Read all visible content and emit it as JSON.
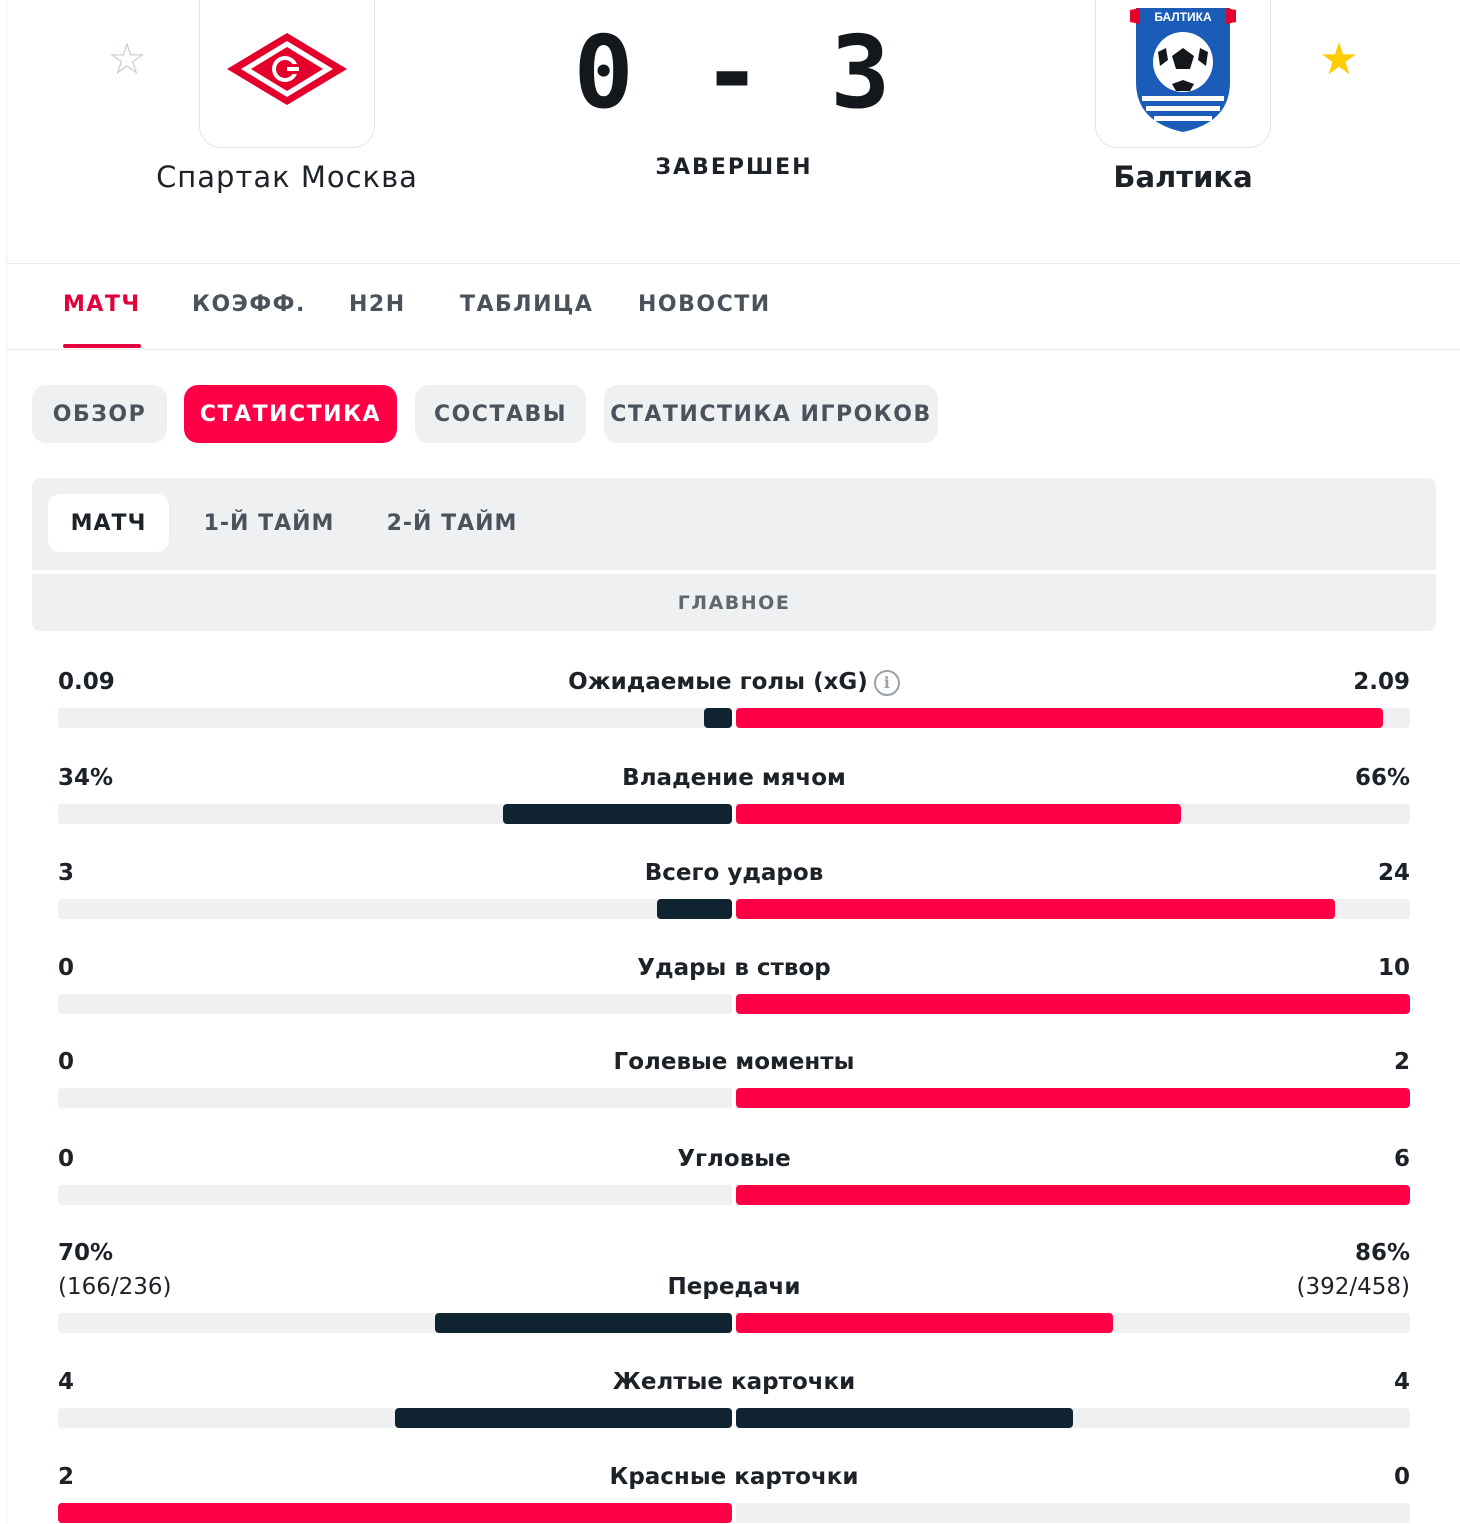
{
  "match": {
    "home": {
      "name": "Спартак Москва",
      "favorite": false
    },
    "away": {
      "name": "Балтика",
      "favorite": true,
      "logo_text": "БАЛТИКА"
    },
    "score": "0 - 3",
    "status": "ЗАВЕРШЕН"
  },
  "main_tabs": [
    {
      "label": "МАТЧ",
      "active": true
    },
    {
      "label": "КОЭФФ.",
      "active": false
    },
    {
      "label": "H2H",
      "active": false
    },
    {
      "label": "ТАБЛИЦА",
      "active": false
    },
    {
      "label": "НОВОСТИ",
      "active": false
    }
  ],
  "sub_tabs": [
    {
      "label": "ОБЗОР",
      "active": false
    },
    {
      "label": "СТАТИСТИКА",
      "active": true
    },
    {
      "label": "СОСТАВЫ",
      "active": false
    },
    {
      "label": "СТАТИСТИКА ИГРОКОВ",
      "active": false
    }
  ],
  "period_tabs": [
    {
      "label": "МАТЧ",
      "active": true
    },
    {
      "label": "1-Й ТАЙМ",
      "active": false
    },
    {
      "label": "2-Й ТАЙМ",
      "active": false
    }
  ],
  "section_title": "ГЛАВНОЕ",
  "stats": [
    {
      "label": "Ожидаемые голы (xG)",
      "info": true,
      "home": "0.09",
      "away": "2.09",
      "home_fraction": 0.04,
      "away_fraction": 0.96,
      "home_color": "#0f2430",
      "away_color": "#ff0046"
    },
    {
      "label": "Владение мячом",
      "home": "34%",
      "away": "66%",
      "home_fraction": 0.34,
      "away_fraction": 0.66,
      "home_color": "#0f2430",
      "away_color": "#ff0046"
    },
    {
      "label": "Всего ударов",
      "home": "3",
      "away": "24",
      "home_fraction": 0.111,
      "away_fraction": 0.889,
      "home_color": "#0f2430",
      "away_color": "#ff0046"
    },
    {
      "label": "Удары в створ",
      "home": "0",
      "away": "10",
      "home_fraction": 0,
      "away_fraction": 1,
      "home_color": "#0f2430",
      "away_color": "#ff0046"
    },
    {
      "label": "Голевые моменты",
      "home": "0",
      "away": "2",
      "home_fraction": 0,
      "away_fraction": 1,
      "home_color": "#0f2430",
      "away_color": "#ff0046"
    },
    {
      "label": "Угловые",
      "home": "0",
      "away": "6",
      "home_fraction": 0,
      "away_fraction": 1,
      "home_color": "#0f2430",
      "away_color": "#ff0046"
    },
    {
      "label": "Передачи",
      "home": "70%",
      "home_sub": "(166/236)",
      "away": "86%",
      "away_sub": "(392/458)",
      "home_fraction": 0.44,
      "away_fraction": 0.56,
      "home_color": "#0f2430",
      "away_color": "#ff0046"
    },
    {
      "label": "Желтые карточки",
      "home": "4",
      "away": "4",
      "home_fraction": 0.5,
      "away_fraction": 0.5,
      "home_color": "#0f2430",
      "away_color": "#0f2430"
    },
    {
      "label": "Красные карточки",
      "home": "2",
      "away": "0",
      "home_fraction": 1,
      "away_fraction": 0,
      "home_color": "#ff0046",
      "away_color": "#0f2430"
    }
  ],
  "icons": {
    "home_favorite": "star-outline-icon",
    "away_favorite": "star-filled-icon",
    "info": "info-icon"
  },
  "colors": {
    "accent": "#e4003a",
    "pill_active": "#ff0046",
    "bar_dark": "#0f2430",
    "bar_red": "#ff0046",
    "favorite": "#ffcc00"
  }
}
